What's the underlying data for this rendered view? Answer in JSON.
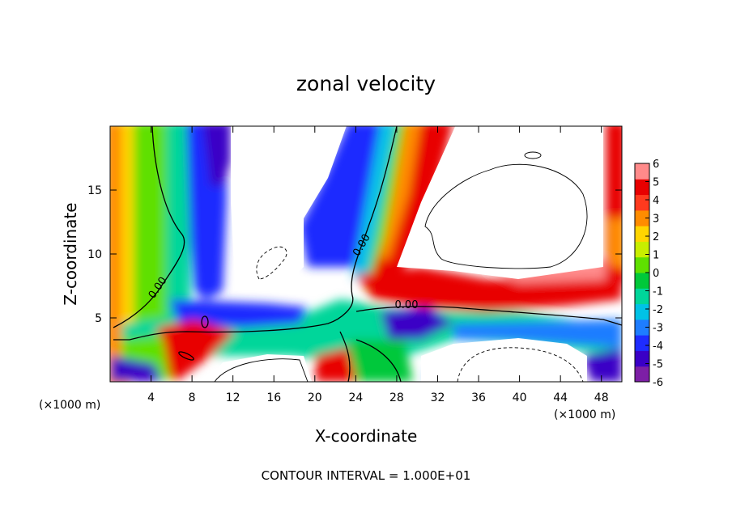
{
  "chart_data": {
    "type": "heatmap",
    "title": "zonal velocity",
    "xlabel": "X-coordinate",
    "ylabel": "Z-coordinate",
    "x_unit_label": "(×1000 m)",
    "x_unit_label_right": "(×1000 m)",
    "footer": "CONTOUR INTERVAL = 1.000E+01",
    "xlim": [
      0,
      50
    ],
    "ylim": [
      0,
      20
    ],
    "x_ticks": [
      4,
      8,
      12,
      16,
      20,
      24,
      28,
      32,
      36,
      40,
      44,
      48
    ],
    "y_ticks": [
      5,
      10,
      15
    ],
    "contour_labels": [
      "0.00",
      "0.00",
      "0.00"
    ],
    "colorbar": {
      "min": -6,
      "max": 6,
      "ticks": [
        6,
        5,
        4,
        3,
        2,
        1,
        0,
        -1,
        -2,
        -3,
        -4,
        -5,
        -6
      ],
      "colors": [
        "#7d1fa6",
        "#3a00c6",
        "#1e2cff",
        "#1e7dff",
        "#00c2e6",
        "#00d69a",
        "#00c83a",
        "#5fe000",
        "#c8ee00",
        "#ffd500",
        "#ff8c00",
        "#ff3a1e",
        "#e80000",
        "#ff8a8a"
      ]
    },
    "field_samples": [
      {
        "x": 2,
        "z": 15,
        "value": 3
      },
      {
        "x": 6,
        "z": 12,
        "value": 0.5
      },
      {
        "x": 10,
        "z": 17,
        "value": -4
      },
      {
        "x": 20,
        "z": 13,
        "value": -4.5
      },
      {
        "x": 24,
        "z": 12,
        "value": -1
      },
      {
        "x": 27,
        "z": 15,
        "value": 3
      },
      {
        "x": 29,
        "z": 16,
        "value": 5
      },
      {
        "x": 16,
        "z": 6,
        "value": -3.5
      },
      {
        "x": 30,
        "z": 6,
        "value": 4
      },
      {
        "x": 45,
        "z": 7,
        "value": 4
      },
      {
        "x": 40,
        "z": 4.5,
        "value": -2
      },
      {
        "x": 8,
        "z": 2,
        "value": 4
      },
      {
        "x": 22,
        "z": 1,
        "value": 5
      }
    ]
  }
}
